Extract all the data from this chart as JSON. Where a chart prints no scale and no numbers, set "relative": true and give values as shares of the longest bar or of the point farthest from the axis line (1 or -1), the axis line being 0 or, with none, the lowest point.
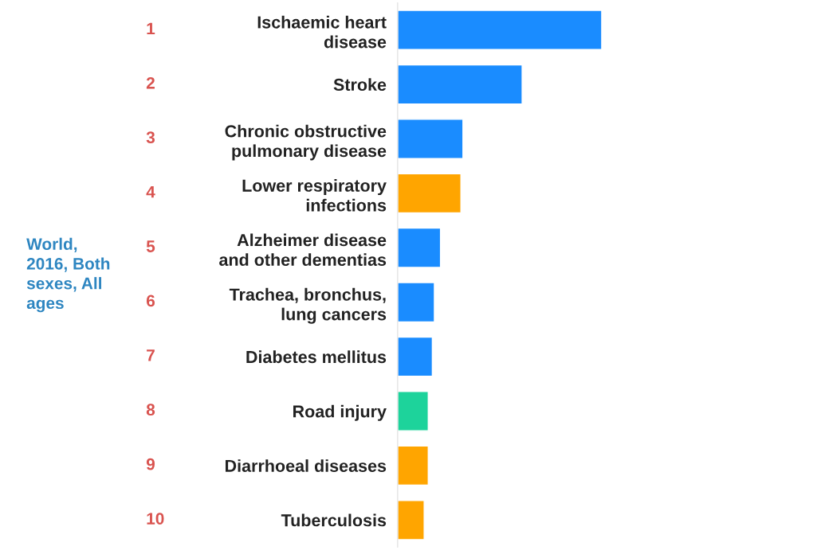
{
  "chart_data": {
    "type": "bar",
    "orientation": "horizontal",
    "relative": true,
    "categories": [
      "Ischaemic heart\ndisease",
      "Stroke",
      "Chronic obstructive\npulmonary disease",
      "Lower respiratory\ninfections",
      "Alzheimer disease\nand other dementias",
      "Trachea, bronchus,\nlung cancers",
      "Diabetes mellitus",
      "Road injury",
      "Diarrhoeal diseases",
      "Tuberculosis"
    ],
    "values": [
      1,
      0.61,
      0.32,
      0.31,
      0.21,
      0.18,
      0.17,
      0.15,
      0.15,
      0.13
    ],
    "colors": [
      "#1a8cff",
      "#1a8cff",
      "#1a8cff",
      "#ffa500",
      "#1a8cff",
      "#1a8cff",
      "#1a8cff",
      "#1dd39b",
      "#ffa500",
      "#ffa500"
    ],
    "annotations": [
      "1",
      "2",
      "3",
      "4",
      "5",
      "6",
      "7",
      "8",
      "9",
      "10",
      "World,\n2016, Both\nsexes, All\nages"
    ],
    "grid": false
  }
}
